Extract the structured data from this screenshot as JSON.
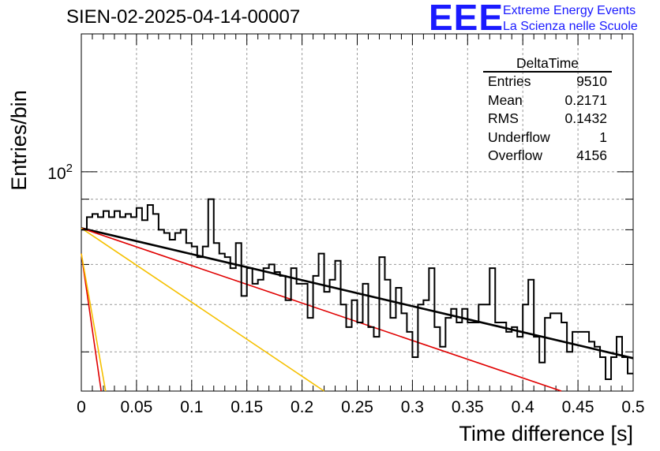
{
  "title": "SIEN-02-2025-04-14-00007",
  "logo": {
    "mark": "EEE",
    "line1": "Extreme Energy Events",
    "line2": "La Scienza nelle Scuole",
    "color": "#1a1aff"
  },
  "stats": {
    "title": "DeltaTime",
    "rows": [
      {
        "label": "Entries",
        "value": "9510"
      },
      {
        "label": "Mean",
        "value": "0.2171"
      },
      {
        "label": "RMS",
        "value": "0.1432"
      },
      {
        "label": "Underflow",
        "value": "1"
      },
      {
        "label": "Overflow",
        "value": "4156"
      }
    ]
  },
  "chart_data": {
    "type": "line",
    "xlabel": "Time difference [s]",
    "ylabel": "Entries/bin",
    "xlim": [
      0,
      0.5
    ],
    "ylim": [
      43,
      170
    ],
    "yscale": "log",
    "xticks": [
      "0",
      "0.05",
      "0.1",
      "0.15",
      "0.2",
      "0.25",
      "0.3",
      "0.35",
      "0.4",
      "0.45",
      "0.5"
    ],
    "yticks": [
      {
        "value": 100,
        "label": "10^2"
      }
    ],
    "grid": true,
    "histogram": {
      "name": "DeltaTime",
      "bin_width": 0.005,
      "values": [
        80,
        84,
        85,
        84,
        86,
        84,
        86,
        84,
        85,
        84,
        87,
        83,
        88,
        85,
        80,
        79,
        77,
        79,
        80,
        76,
        75,
        72,
        75,
        90,
        76,
        73,
        72,
        69,
        76,
        62,
        69,
        65,
        66,
        69,
        70,
        68,
        67,
        61,
        69,
        65,
        65,
        57,
        67,
        73,
        63,
        66,
        71,
        60,
        55,
        61,
        56,
        65,
        55,
        53,
        72,
        66,
        57,
        64,
        58,
        54,
        49,
        60,
        61,
        69,
        55,
        51,
        57,
        59,
        56,
        59,
        56,
        56,
        60,
        60,
        69,
        56,
        56,
        54,
        55,
        53,
        60,
        66,
        53,
        48,
        57,
        58,
        58,
        56,
        50,
        54,
        54,
        54,
        52,
        51,
        49,
        45,
        49,
        53,
        49,
        46
      ]
    },
    "fit_lines": [
      {
        "name": "fit",
        "color": "#000000",
        "x": [
          0,
          0.5
        ],
        "y": [
          80.5,
          48.8
        ]
      },
      {
        "name": "slow-component",
        "color": "#e00000",
        "x": [
          0,
          0.435
        ],
        "y": [
          80.5,
          43
        ]
      },
      {
        "name": "medium-component",
        "color": "#f5c000",
        "x": [
          0,
          0.22
        ],
        "y": [
          80.5,
          43
        ]
      },
      {
        "name": "fast-component-red",
        "color": "#e00000",
        "x": [
          0,
          0.018
        ],
        "y": [
          73,
          43
        ]
      },
      {
        "name": "fast-component-yellow",
        "color": "#f5c000",
        "x": [
          0,
          0.022
        ],
        "y": [
          73,
          43
        ]
      }
    ]
  }
}
